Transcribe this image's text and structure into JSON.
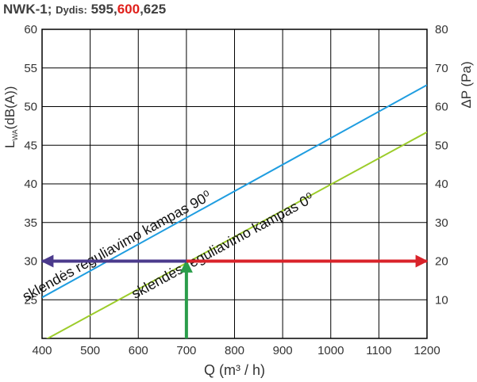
{
  "header": {
    "model": "NWK-1;",
    "size_label": "Dydis:",
    "size_a": "595,",
    "size_selected": "600",
    "size_b": ",625"
  },
  "chart_data": {
    "type": "line",
    "xlabel": "Q (m³ / h)",
    "ylabel_left": "L",
    "ylabel_left_sub": "WA",
    "ylabel_left_suffix": "(dB(A))",
    "ylabel_right": "ΔP (Pa)",
    "xlim": [
      400,
      1200
    ],
    "ylim_left": [
      20,
      60
    ],
    "ylim_right": [
      0,
      80
    ],
    "x_ticks": [
      400,
      500,
      600,
      700,
      800,
      900,
      1000,
      1100,
      1200
    ],
    "y_ticks_left": [
      25,
      30,
      35,
      40,
      45,
      50,
      55,
      60
    ],
    "y_ticks_right": [
      10,
      20,
      30,
      40,
      50,
      60,
      70,
      80
    ],
    "grid": true,
    "series": [
      {
        "name": "sklendės reguliavimo kampas 90⁰",
        "color": "#1f9de0",
        "axis": "left",
        "x": [
          400,
          1200
        ],
        "y": [
          25.3,
          52.8
        ]
      },
      {
        "name": "sklendės reguliavimo kampas 0⁰",
        "color": "#9ccc2a",
        "axis": "left",
        "x": [
          400,
          1200
        ],
        "y": [
          19.6,
          46.7
        ]
      }
    ],
    "annotations": [
      {
        "type": "arrow",
        "color": "#2a9d4a",
        "x": [
          700,
          700
        ],
        "y": [
          20,
          30
        ],
        "axis": "left"
      },
      {
        "type": "arrow",
        "color": "#4b3a8c",
        "x": [
          700,
          400
        ],
        "y": [
          30,
          30
        ],
        "axis": "left"
      },
      {
        "type": "arrow",
        "color": "#d9232a",
        "x": [
          700,
          1200
        ],
        "y": [
          20,
          20
        ],
        "axis": "right"
      }
    ]
  }
}
